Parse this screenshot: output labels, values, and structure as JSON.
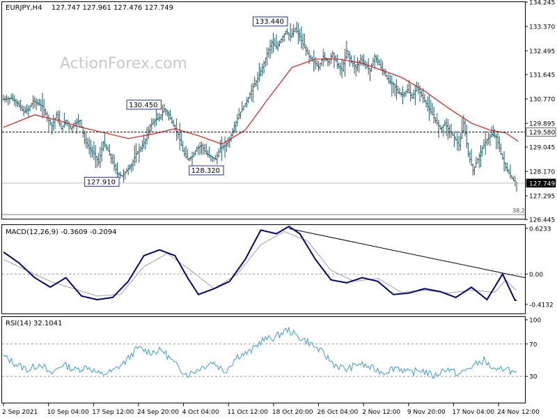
{
  "header": {
    "symbol_info": "EURJPY,H4",
    "ohlc": "127.747 127.961 127.476 127.749"
  },
  "watermark": "ActionForex.com",
  "colors": {
    "bars": "#1a5a66",
    "ma": "#e01818",
    "macd": "#00007a",
    "signal": "#a0a0a0",
    "rsi": "#3a9ad0",
    "trendline": "#000000",
    "label_border": "#1c2f9e",
    "background": "#ffffff"
  },
  "chart_data": [
    {
      "type": "ohlc",
      "name": "price",
      "ylim": [
        126.445,
        134.245
      ],
      "y_ticks": [
        "134.245",
        "133.370",
        "132.495",
        "131.645",
        "130.770",
        "129.895",
        "129.045",
        "128.170",
        "127.295",
        "126.445"
      ],
      "x_ticks": [
        "2 Sep 2021",
        "10 Sep 04:00",
        "17 Sep 12:00",
        "24 Sep 20:00",
        "4 Oct 04:00",
        "11 Oct 12:00",
        "18 Oct 20:00",
        "26 Oct 04:00",
        "2 Nov 12:00",
        "9 Nov 20:00",
        "17 Nov 04:00",
        "24 Nov 12:00"
      ],
      "close_path": [
        [
          0,
          130.75
        ],
        [
          5,
          130.8
        ],
        [
          9,
          130.6
        ],
        [
          13,
          130.3
        ],
        [
          16,
          130.4
        ],
        [
          19,
          130.7
        ],
        [
          22,
          130.6
        ],
        [
          25,
          130.5
        ],
        [
          28,
          130.1
        ],
        [
          31,
          129.8
        ],
        [
          34,
          130.2
        ],
        [
          37,
          129.7
        ],
        [
          40,
          130.0
        ],
        [
          43,
          129.7
        ],
        [
          46,
          129.9
        ],
        [
          49,
          130.0
        ],
        [
          52,
          129.3
        ],
        [
          55,
          129.0
        ],
        [
          58,
          128.8
        ],
        [
          61,
          128.5
        ],
        [
          64,
          129.2
        ],
        [
          67,
          128.9
        ],
        [
          70,
          128.5
        ],
        [
          73,
          128.1
        ],
        [
          76,
          128.0
        ],
        [
          79,
          128.2
        ],
        [
          82,
          128.4
        ],
        [
          85,
          128.8
        ],
        [
          88,
          129.0
        ],
        [
          91,
          129.3
        ],
        [
          94,
          129.8
        ],
        [
          97,
          130.0
        ],
        [
          100,
          130.1
        ],
        [
          103,
          130.4
        ],
        [
          106,
          130.2
        ],
        [
          109,
          129.8
        ],
        [
          112,
          129.5
        ],
        [
          115,
          128.9
        ],
        [
          118,
          128.6
        ],
        [
          121,
          128.7
        ],
        [
          124,
          129.0
        ],
        [
          127,
          129.1
        ],
        [
          130,
          128.8
        ],
        [
          133,
          128.7
        ],
        [
          136,
          128.6
        ],
        [
          139,
          129.0
        ],
        [
          142,
          129.1
        ],
        [
          145,
          129.3
        ],
        [
          148,
          129.8
        ],
        [
          151,
          130.2
        ],
        [
          154,
          130.5
        ],
        [
          157,
          130.8
        ],
        [
          160,
          131.2
        ],
        [
          163,
          131.5
        ],
        [
          166,
          131.9
        ],
        [
          169,
          132.4
        ],
        [
          172,
          132.8
        ],
        [
          175,
          132.6
        ],
        [
          178,
          132.9
        ],
        [
          181,
          133.2
        ],
        [
          184,
          133.0
        ],
        [
          187,
          133.3
        ],
        [
          190,
          133.0
        ],
        [
          193,
          132.6
        ],
        [
          196,
          132.3
        ],
        [
          199,
          132.1
        ],
        [
          202,
          131.9
        ],
        [
          205,
          132.3
        ],
        [
          208,
          132.1
        ],
        [
          211,
          132.4
        ],
        [
          214,
          132.0
        ],
        [
          217,
          131.8
        ],
        [
          220,
          132.5
        ],
        [
          223,
          132.1
        ],
        [
          226,
          131.9
        ],
        [
          229,
          132.2
        ],
        [
          232,
          132.0
        ],
        [
          235,
          131.8
        ],
        [
          238,
          132.3
        ],
        [
          241,
          132.0
        ],
        [
          244,
          131.7
        ],
        [
          247,
          131.4
        ],
        [
          250,
          131.3
        ],
        [
          253,
          131.0
        ],
        [
          256,
          130.9
        ],
        [
          259,
          131.1
        ],
        [
          262,
          130.8
        ],
        [
          265,
          131.2
        ],
        [
          268,
          130.9
        ],
        [
          271,
          130.6
        ],
        [
          274,
          130.3
        ],
        [
          277,
          130.0
        ],
        [
          280,
          129.7
        ],
        [
          283,
          129.9
        ],
        [
          286,
          129.6
        ],
        [
          289,
          129.4
        ],
        [
          292,
          129.1
        ],
        [
          295,
          129.9
        ],
        [
          298,
          128.8
        ],
        [
          301,
          128.2
        ],
        [
          304,
          128.6
        ],
        [
          307,
          129.0
        ],
        [
          310,
          129.3
        ],
        [
          313,
          129.5
        ],
        [
          316,
          129.4
        ],
        [
          319,
          128.8
        ],
        [
          322,
          128.3
        ],
        [
          325,
          128.0
        ],
        [
          328,
          127.749
        ]
      ],
      "moving_average": [
        [
          0,
          129.75
        ],
        [
          20,
          130.2
        ],
        [
          35,
          130.0
        ],
        [
          50,
          129.75
        ],
        [
          65,
          129.55
        ],
        [
          80,
          129.35
        ],
        [
          95,
          129.5
        ],
        [
          110,
          129.7
        ],
        [
          125,
          129.45
        ],
        [
          140,
          129.15
        ],
        [
          155,
          129.65
        ],
        [
          170,
          130.8
        ],
        [
          185,
          131.9
        ],
        [
          200,
          132.2
        ],
        [
          215,
          132.2
        ],
        [
          230,
          132.05
        ],
        [
          240,
          131.85
        ],
        [
          255,
          131.55
        ],
        [
          270,
          131.05
        ],
        [
          285,
          130.45
        ],
        [
          300,
          129.9
        ],
        [
          312,
          129.65
        ],
        [
          322,
          129.55
        ],
        [
          330,
          129.25
        ]
      ],
      "horizontal_level": 129.58,
      "last_price": 127.749,
      "annotations": [
        {
          "label": "133.440",
          "x": 183,
          "y": 133.44
        },
        {
          "label": "130.450",
          "x": 102,
          "y": 130.45
        },
        {
          "label": "128.320",
          "x": 142,
          "y": 128.32
        },
        {
          "label": "127.910",
          "x": 75,
          "y": 127.91
        }
      ],
      "fib_label": "38.2"
    },
    {
      "type": "line",
      "name": "macd",
      "label": "MACD(12,26,9) -0.3609 -0.2094",
      "ylim": [
        -0.52,
        0.65
      ],
      "y_ticks": [
        "0.6233",
        "0.00",
        "-0.4132"
      ],
      "macd_path": [
        [
          0,
          0.3
        ],
        [
          10,
          0.15
        ],
        [
          20,
          -0.05
        ],
        [
          30,
          -0.18
        ],
        [
          40,
          -0.05
        ],
        [
          50,
          -0.3
        ],
        [
          60,
          -0.35
        ],
        [
          70,
          -0.32
        ],
        [
          80,
          -0.1
        ],
        [
          90,
          0.25
        ],
        [
          100,
          0.33
        ],
        [
          110,
          0.25
        ],
        [
          118,
          -0.05
        ],
        [
          125,
          -0.28
        ],
        [
          135,
          -0.2
        ],
        [
          145,
          -0.1
        ],
        [
          155,
          0.2
        ],
        [
          165,
          0.6
        ],
        [
          175,
          0.55
        ],
        [
          183,
          0.65
        ],
        [
          190,
          0.55
        ],
        [
          200,
          0.2
        ],
        [
          210,
          -0.08
        ],
        [
          220,
          -0.12
        ],
        [
          230,
          -0.05
        ],
        [
          240,
          -0.1
        ],
        [
          250,
          -0.28
        ],
        [
          260,
          -0.26
        ],
        [
          270,
          -0.2
        ],
        [
          280,
          -0.24
        ],
        [
          290,
          -0.32
        ],
        [
          300,
          -0.18
        ],
        [
          310,
          -0.35
        ],
        [
          320,
          0.0
        ],
        [
          328,
          -0.36
        ]
      ],
      "signal_path": [
        [
          0,
          0.2
        ],
        [
          15,
          0.05
        ],
        [
          30,
          -0.1
        ],
        [
          45,
          -0.2
        ],
        [
          60,
          -0.3
        ],
        [
          75,
          -0.28
        ],
        [
          90,
          0.1
        ],
        [
          105,
          0.28
        ],
        [
          120,
          0.05
        ],
        [
          135,
          -0.2
        ],
        [
          150,
          0.0
        ],
        [
          165,
          0.4
        ],
        [
          180,
          0.58
        ],
        [
          195,
          0.45
        ],
        [
          210,
          0.05
        ],
        [
          225,
          -0.1
        ],
        [
          240,
          -0.06
        ],
        [
          255,
          -0.25
        ],
        [
          270,
          -0.22
        ],
        [
          285,
          -0.26
        ],
        [
          300,
          -0.22
        ],
        [
          315,
          -0.25
        ],
        [
          322,
          -0.08
        ],
        [
          328,
          -0.21
        ]
      ],
      "trendline": [
        [
          183,
          0.62
        ],
        [
          328,
          -0.05
        ]
      ]
    },
    {
      "type": "line",
      "name": "rsi",
      "label": "RSI(14) 32.1041",
      "ylim": [
        0,
        100
      ],
      "levels": [
        30,
        70
      ],
      "y_ticks": [
        "100",
        "70",
        "30"
      ],
      "rsi_path": [
        [
          0,
          55
        ],
        [
          8,
          45
        ],
        [
          16,
          38
        ],
        [
          24,
          46
        ],
        [
          30,
          32
        ],
        [
          38,
          45
        ],
        [
          46,
          38
        ],
        [
          54,
          42
        ],
        [
          62,
          32
        ],
        [
          70,
          36
        ],
        [
          78,
          48
        ],
        [
          86,
          65
        ],
        [
          94,
          60
        ],
        [
          102,
          62
        ],
        [
          110,
          45
        ],
        [
          118,
          32
        ],
        [
          126,
          40
        ],
        [
          134,
          48
        ],
        [
          142,
          36
        ],
        [
          150,
          55
        ],
        [
          158,
          60
        ],
        [
          166,
          75
        ],
        [
          174,
          78
        ],
        [
          182,
          88
        ],
        [
          188,
          80
        ],
        [
          196,
          72
        ],
        [
          204,
          60
        ],
        [
          212,
          45
        ],
        [
          220,
          38
        ],
        [
          228,
          46
        ],
        [
          236,
          40
        ],
        [
          244,
          35
        ],
        [
          252,
          42
        ],
        [
          260,
          34
        ],
        [
          268,
          38
        ],
        [
          276,
          30
        ],
        [
          284,
          40
        ],
        [
          292,
          32
        ],
        [
          300,
          42
        ],
        [
          308,
          50
        ],
        [
          316,
          35
        ],
        [
          322,
          42
        ],
        [
          328,
          32
        ]
      ]
    }
  ]
}
